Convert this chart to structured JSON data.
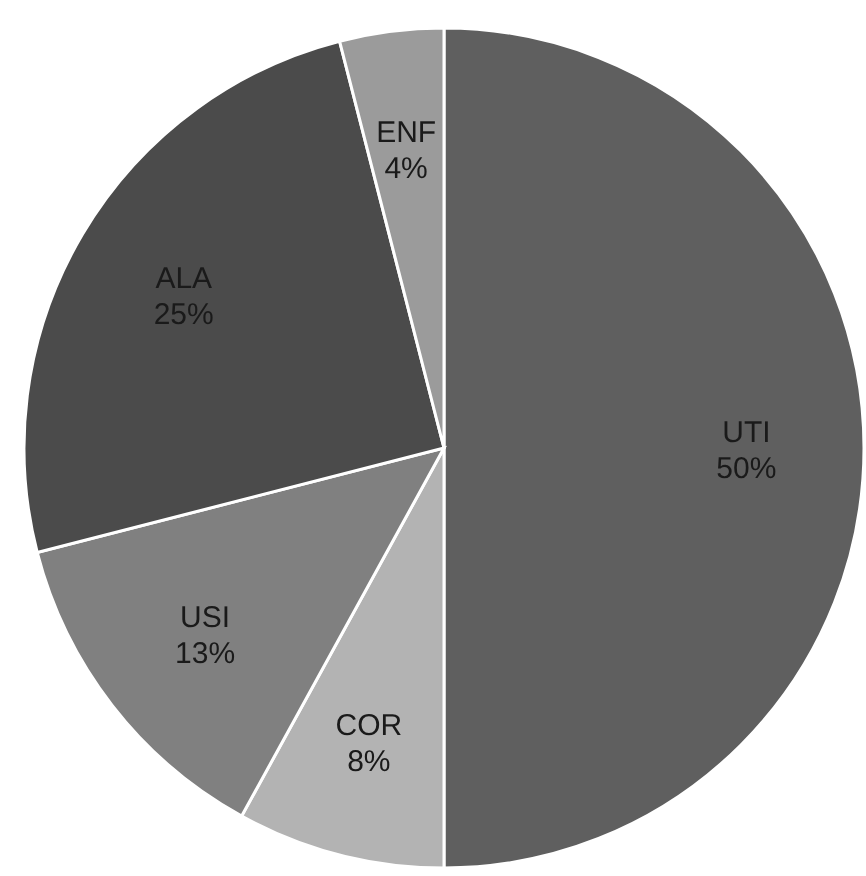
{
  "chart_data": {
    "type": "pie",
    "categories": [
      "UTI",
      "COR",
      "USI",
      "ALA",
      "ENF"
    ],
    "values": [
      50,
      8,
      13,
      25,
      4
    ],
    "colors": [
      "#5f5f5f",
      "#b3b3b3",
      "#808080",
      "#4b4b4b",
      "#9b9b9b"
    ],
    "value_labels": [
      "50%",
      "8%",
      "13%",
      "25%",
      "4%"
    ]
  }
}
